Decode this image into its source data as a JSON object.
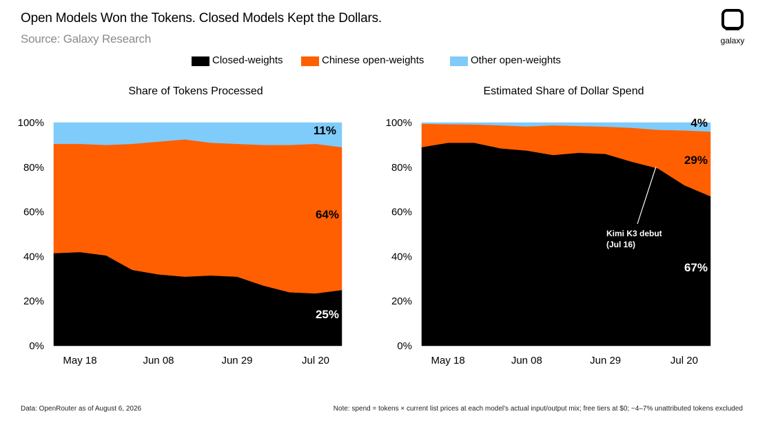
{
  "header": {
    "title": "Open Models Won the Tokens. Closed Models Kept the Dollars.",
    "subtitle": "Source: Galaxy Research",
    "logo_text": "galaxy"
  },
  "legend": [
    {
      "label": "Closed-weights",
      "color": "#000000"
    },
    {
      "label": "Chinese open-weights",
      "color": "#FF5F00"
    },
    {
      "label": "Other open-weights",
      "color": "#7FCBFA"
    }
  ],
  "chart_data": [
    {
      "type": "area",
      "stacked": true,
      "title": "Share of Tokens Processed",
      "x": [
        "May 11",
        "May 18",
        "May 25",
        "Jun 01",
        "Jun 08",
        "Jun 15",
        "Jun 22",
        "Jun 29",
        "Jul 06",
        "Jul 13",
        "Jul 20",
        "Jul 27"
      ],
      "x_ticks": [
        "May 18",
        "Jun 08",
        "Jun 29",
        "Jul 20"
      ],
      "y_ticks": [
        "0%",
        "20%",
        "40%",
        "60%",
        "80%",
        "100%"
      ],
      "ylim": [
        0,
        100
      ],
      "series": [
        {
          "name": "Closed-weights",
          "values": [
            41.5,
            42,
            40.5,
            34,
            32,
            31,
            31.5,
            31,
            27,
            24,
            23.5,
            25
          ]
        },
        {
          "name": "Chinese open-weights",
          "values": [
            49,
            48.5,
            49.5,
            56.5,
            59.5,
            61.5,
            59.5,
            59.5,
            63,
            66,
            67,
            64
          ]
        },
        {
          "name": "Other open-weights",
          "values": [
            9.5,
            9.5,
            10,
            9.5,
            8.5,
            7.5,
            9,
            9.5,
            10,
            10,
            9.5,
            11
          ]
        }
      ],
      "end_labels": [
        "25%",
        "64%",
        "11%"
      ]
    },
    {
      "type": "area",
      "stacked": true,
      "title": "Estimated Share of Dollar Spend",
      "x": [
        "May 11",
        "May 18",
        "May 25",
        "Jun 01",
        "Jun 08",
        "Jun 15",
        "Jun 22",
        "Jun 29",
        "Jul 06",
        "Jul 13",
        "Jul 20",
        "Jul 27"
      ],
      "x_ticks": [
        "May 18",
        "Jun 08",
        "Jun 29",
        "Jul 20"
      ],
      "y_ticks": [
        "0%",
        "20%",
        "40%",
        "60%",
        "80%",
        "100%"
      ],
      "ylim": [
        0,
        100
      ],
      "series": [
        {
          "name": "Closed-weights",
          "values": [
            89,
            91,
            91,
            88.5,
            87.5,
            85.5,
            86.5,
            86,
            82.5,
            79.5,
            72,
            67
          ]
        },
        {
          "name": "Chinese open-weights",
          "values": [
            10.5,
            8.3,
            8.2,
            10.3,
            10.8,
            13.3,
            12,
            12.2,
            15.2,
            17.3,
            24.5,
            29
          ]
        },
        {
          "name": "Other open-weights",
          "values": [
            0.5,
            0.7,
            0.8,
            1.2,
            1.7,
            1.2,
            1.5,
            1.8,
            2.3,
            3.2,
            3.5,
            4
          ]
        }
      ],
      "end_labels": [
        "67%",
        "29%",
        "4%"
      ],
      "annotation": {
        "line1": "Kimi K3 debut",
        "line2": "(Jul 16)",
        "at_x": "Jul 13"
      }
    }
  ],
  "footnotes": {
    "left": "Data: OpenRouter as of August 6, 2026",
    "right": "Note: spend = tokens × current list prices at each model's actual input/output mix; free tiers at $0; ~4–7% unattributed tokens excluded"
  }
}
